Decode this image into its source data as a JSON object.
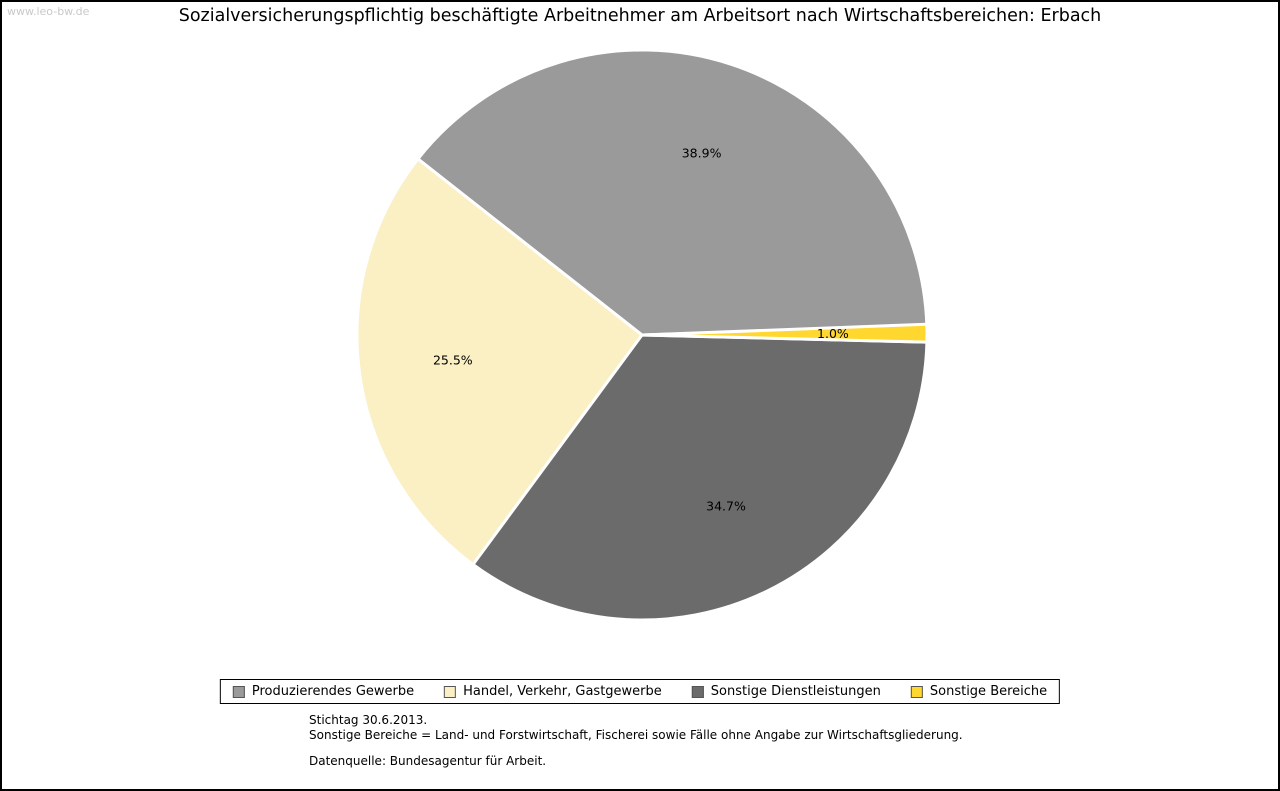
{
  "watermark": "www.leo-bw.de",
  "title": "Sozialversicherungspflichtig beschäftigte Arbeitnehmer am Arbeitsort nach Wirtschaftsbereichen: Erbach",
  "chart_data": {
    "type": "pie",
    "title": "Sozialversicherungspflichtig beschäftigte Arbeitnehmer am Arbeitsort nach Wirtschaftsbereichen: Erbach",
    "legend_position": "bottom",
    "direction": "counterclockwise",
    "start_angle_deg": 1.8,
    "slices": [
      {
        "label": "Produzierendes Gewerbe",
        "value": 38.9,
        "display": "38.9%",
        "color": "#9a9a9a"
      },
      {
        "label": "Handel, Verkehr, Gastgewerbe",
        "value": 25.5,
        "display": "25.5%",
        "color": "#faf0c4"
      },
      {
        "label": "Sonstige Dienstleistungen",
        "value": 34.7,
        "display": "34.7%",
        "color": "#6b6b6b"
      },
      {
        "label": "Sonstige Bereiche",
        "value": 1.0,
        "display": "1.0%",
        "color": "#ffd72e"
      }
    ]
  },
  "footnotes": [
    "Stichtag 30.6.2013.",
    "Sonstige Bereiche = Land- und Forstwirtschaft, Fischerei sowie Fälle ohne Angabe zur Wirtschaftsgliederung.",
    "Datenquelle: Bundesagentur für Arbeit."
  ]
}
